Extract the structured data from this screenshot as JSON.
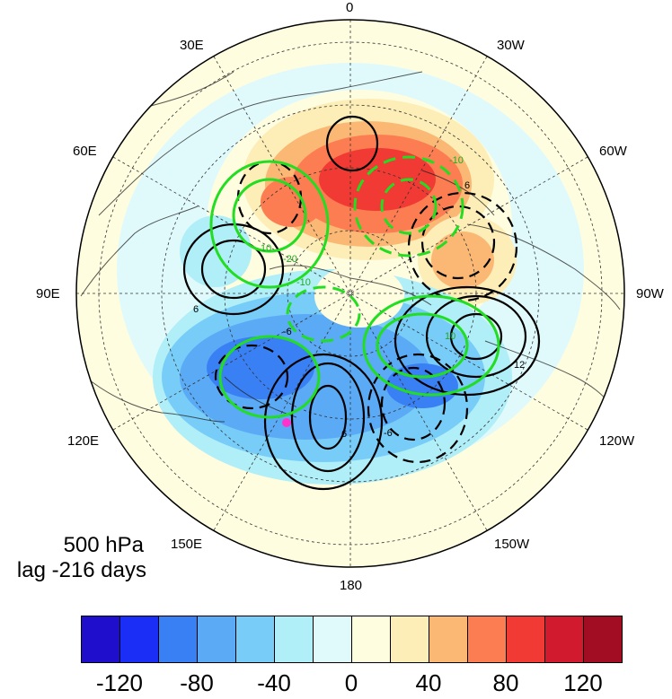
{
  "map": {
    "projection": "north-polar-stereographic",
    "longitude_labels": {
      "top": "0",
      "top_left": "30E",
      "top_right": "30W",
      "upper_left": "60E",
      "upper_right": "60W",
      "left": "90E",
      "right": "90W",
      "lower_left": "120E",
      "lower_right": "120W",
      "bottom_left": "150E",
      "bottom_right": "150W",
      "bottom": "180"
    },
    "caption": {
      "level": "500 hPa",
      "lag": "lag -216 days"
    },
    "contour_labels_black": [
      "6",
      "6",
      "6",
      "12",
      "-6",
      "-6"
    ],
    "contour_labels_green": [
      "10",
      "-10",
      "-20",
      "-10",
      "10"
    ],
    "marker_color": "#ff33cc"
  },
  "colorbar": {
    "colors": [
      "#1f0fcc",
      "#1a2ef5",
      "#3a80f5",
      "#5aaaf5",
      "#78cdf8",
      "#b0eef8",
      "#e0fafc",
      "#fffde0",
      "#fdedb6",
      "#fbb874",
      "#fd7d52",
      "#f13a33",
      "#d11a2e",
      "#a30d24"
    ],
    "labels": [
      "-120",
      "-80",
      "-40",
      "0",
      "40",
      "80",
      "120"
    ]
  }
}
